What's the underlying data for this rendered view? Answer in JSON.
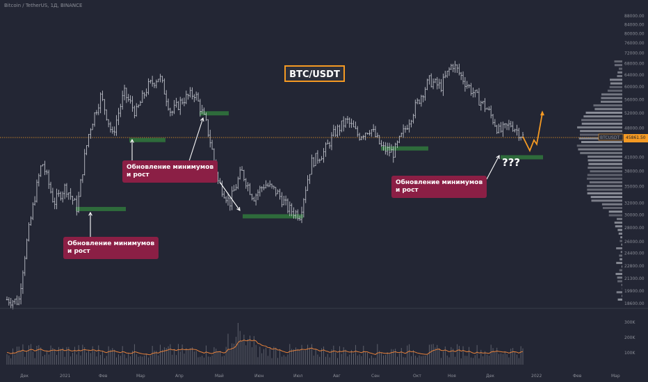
{
  "header": {
    "symbol_line": "Bitcoin / TetherUS, 1Д, BINANCE"
  },
  "title_box": "BTC/USDT",
  "annotations": [
    {
      "text": "Обновление минимумов\nи рост"
    },
    {
      "text": "Обновление минимумов\nи рост"
    },
    {
      "text": "Обновление минимумов\nи рост"
    }
  ],
  "question": "???",
  "price_tag": {
    "symbol": "BTCUSDT",
    "value": "45861.50"
  },
  "colors": {
    "background": "#232634",
    "candles": "#d1d4dc",
    "support_zone": "#2e6b3b",
    "annotation_bg": "#8b1f45",
    "projection": "#f59a23",
    "title_border": "#f59a23",
    "volume_ma": "#e8823b",
    "volume_profile": "#c9ccd4"
  },
  "chart_data": {
    "type": "candlestick",
    "y_ticks": [
      "88000.00",
      "84000.00",
      "80000.00",
      "76000.00",
      "72000.00",
      "68000.00",
      "64000.00",
      "60000.00",
      "56000.00",
      "52000.00",
      "48000.00",
      "45000.00",
      "41000.00",
      "38000.00",
      "35000.00",
      "32000.00",
      "30000.00",
      "28000.00",
      "26000.00",
      "24400.00",
      "22800.00",
      "21300.00",
      "19900.00",
      "18600.00"
    ],
    "y_unit": "USDT",
    "x_ticks": [
      "Дек",
      "2021",
      "Фев",
      "Мар",
      "Апр",
      "Май",
      "Июн",
      "Июл",
      "Авг",
      "Сен",
      "Окт",
      "Ноя",
      "Дек",
      "2022",
      "Фев",
      "Мар"
    ],
    "volume_ticks": [
      "300K",
      "200K",
      "100K"
    ],
    "price_path": [
      [
        "Дек",
        19000
      ],
      [
        "Дек",
        18800
      ],
      [
        "2021",
        29000
      ],
      [
        "2021",
        40000
      ],
      [
        "2021",
        32000
      ],
      [
        "2021",
        35000
      ],
      [
        "Фев",
        31000
      ],
      [
        "Фев",
        47000
      ],
      [
        "Фев",
        57000
      ],
      [
        "Мар",
        46000
      ],
      [
        "Мар",
        58000
      ],
      [
        "Мар",
        52000
      ],
      [
        "Апр",
        60000
      ],
      [
        "Апр",
        63500
      ],
      [
        "Апр",
        52000
      ],
      [
        "Апр",
        56000
      ],
      [
        "Май",
        58000
      ],
      [
        "Май",
        49000
      ],
      [
        "Май",
        36000
      ],
      [
        "Май",
        32000
      ],
      [
        "Июн",
        38000
      ],
      [
        "Июн",
        33000
      ],
      [
        "Июн",
        35500
      ],
      [
        "Июл",
        34000
      ],
      [
        "Июл",
        31000
      ],
      [
        "Июл",
        30000
      ],
      [
        "Июл",
        40000
      ],
      [
        "Авг",
        42000
      ],
      [
        "Авг",
        47000
      ],
      [
        "Авг",
        50000
      ],
      [
        "Сен",
        46000
      ],
      [
        "Сен",
        48000
      ],
      [
        "Сен",
        43000
      ],
      [
        "Сен",
        42000
      ],
      [
        "Окт",
        48000
      ],
      [
        "Окт",
        55000
      ],
      [
        "Окт",
        62000
      ],
      [
        "Ноя",
        60000
      ],
      [
        "Ноя",
        68000
      ],
      [
        "Ноя",
        62000
      ],
      [
        "Ноя",
        57000
      ],
      [
        "Дек",
        53000
      ],
      [
        "Дек",
        47000
      ],
      [
        "Дек",
        49000
      ],
      [
        "Дек",
        45861.5
      ]
    ],
    "projection": [
      45861.5,
      42500,
      45000,
      44000,
      52000
    ],
    "support_zones": [
      {
        "from": "2021",
        "to": "Фев",
        "price": 31000
      },
      {
        "from": "Фев",
        "to": "Мар",
        "price": 45000
      },
      {
        "from": "Май",
        "to": "Май",
        "price": 52000
      },
      {
        "from": "Май",
        "to": "Июл",
        "price": 29800
      },
      {
        "from": "Сен",
        "to": "Окт",
        "price": 43000
      },
      {
        "from": "Дек",
        "to": "Дек",
        "price": 41000
      }
    ],
    "current_price": 45861.5
  }
}
